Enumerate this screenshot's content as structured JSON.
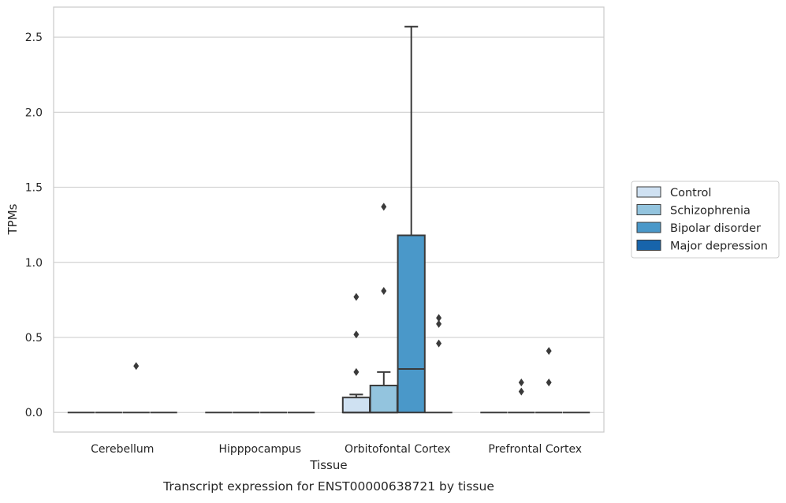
{
  "chart_data": {
    "type": "box",
    "caption": "Transcript expression for ENST00000638721 by tissue",
    "xlabel": "Tissue",
    "ylabel": "TPMs",
    "ylim": [
      -0.13,
      2.7
    ],
    "yticks": [
      0.0,
      0.5,
      1.0,
      1.5,
      2.0,
      2.5
    ],
    "ytick_labels": [
      "0.0",
      "0.5",
      "1.0",
      "1.5",
      "2.0",
      "2.5"
    ],
    "grid": "horizontal",
    "legend_position": "right",
    "categories": [
      "Cerebellum",
      "Hipppocampus",
      "Orbitofontal Cortex",
      "Prefrontal Cortex"
    ],
    "series": [
      {
        "name": "Control",
        "color": "#cfe1f2",
        "boxes": [
          {
            "q1": 0,
            "median": 0,
            "q3": 0,
            "whisker_low": 0,
            "whisker_high": 0,
            "outliers": []
          },
          {
            "q1": 0,
            "median": 0,
            "q3": 0,
            "whisker_low": 0,
            "whisker_high": 0,
            "outliers": []
          },
          {
            "q1": 0,
            "median": 0,
            "q3": 0.1,
            "whisker_low": 0,
            "whisker_high": 0.12,
            "outliers": [
              0.27,
              0.52,
              0.77
            ]
          },
          {
            "q1": 0,
            "median": 0,
            "q3": 0,
            "whisker_low": 0,
            "whisker_high": 0,
            "outliers": []
          }
        ]
      },
      {
        "name": "Schizophrenia",
        "color": "#93c4de",
        "boxes": [
          {
            "q1": 0,
            "median": 0,
            "q3": 0,
            "whisker_low": 0,
            "whisker_high": 0,
            "outliers": []
          },
          {
            "q1": 0,
            "median": 0,
            "q3": 0,
            "whisker_low": 0,
            "whisker_high": 0,
            "outliers": []
          },
          {
            "q1": 0,
            "median": 0,
            "q3": 0.18,
            "whisker_low": 0,
            "whisker_high": 0.27,
            "outliers": [
              0.81,
              1.37
            ]
          },
          {
            "q1": 0,
            "median": 0,
            "q3": 0,
            "whisker_low": 0,
            "whisker_high": 0,
            "outliers": [
              0.14,
              0.2
            ]
          }
        ]
      },
      {
        "name": "Bipolar disorder",
        "color": "#4a98c9",
        "boxes": [
          {
            "q1": 0,
            "median": 0,
            "q3": 0,
            "whisker_low": 0,
            "whisker_high": 0,
            "outliers": [
              0.31
            ]
          },
          {
            "q1": 0,
            "median": 0,
            "q3": 0,
            "whisker_low": 0,
            "whisker_high": 0,
            "outliers": []
          },
          {
            "q1": 0,
            "median": 0.29,
            "q3": 1.18,
            "whisker_low": 0,
            "whisker_high": 2.57,
            "outliers": []
          },
          {
            "q1": 0,
            "median": 0,
            "q3": 0,
            "whisker_low": 0,
            "whisker_high": 0,
            "outliers": [
              0.2,
              0.41
            ]
          }
        ]
      },
      {
        "name": "Major depression",
        "color": "#1764ab",
        "boxes": [
          {
            "q1": 0,
            "median": 0,
            "q3": 0,
            "whisker_low": 0,
            "whisker_high": 0,
            "outliers": []
          },
          {
            "q1": 0,
            "median": 0,
            "q3": 0,
            "whisker_low": 0,
            "whisker_high": 0,
            "outliers": []
          },
          {
            "q1": 0,
            "median": 0,
            "q3": 0,
            "whisker_low": 0,
            "whisker_high": 0,
            "outliers": [
              0.46,
              0.59,
              0.63
            ]
          },
          {
            "q1": 0,
            "median": 0,
            "q3": 0,
            "whisker_low": 0,
            "whisker_high": 0,
            "outliers": []
          }
        ]
      }
    ]
  }
}
